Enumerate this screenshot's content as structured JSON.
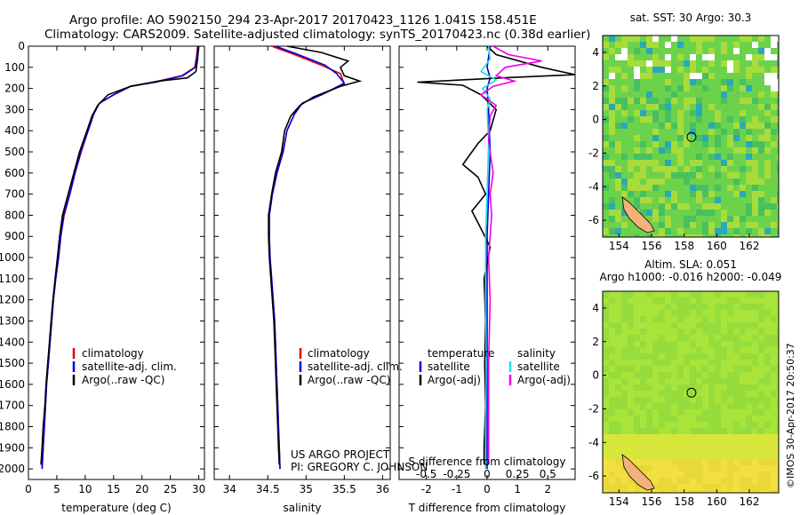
{
  "header": {
    "line1": "Argo profile: AO 5902150_294 23-Apr-2017 20170423_1126 1.041S 158.451E",
    "line2": "Climatology: CARS2009. Satellite-adjusted climatology: synTS_20170423.nc (0.38d earlier)"
  },
  "colors": {
    "climatology": "#dd0000",
    "satellite": "#0000dd",
    "argo": "#000000",
    "sal_satellite": "#22dddd",
    "sal_argo": "#ee00ee"
  },
  "notes": {
    "project": "US ARGO PROJECT",
    "pi": "PI: GREGORY C. JOHNSON"
  },
  "stamp": "©IMOS 30-Apr-2017 20:50:37",
  "chart_data": [
    {
      "id": "temperature",
      "type": "line",
      "xlabel": "temperature (deg C)",
      "ylabel": "",
      "xlim": [
        0,
        31
      ],
      "ylim": [
        0,
        2050
      ],
      "yreversed": true,
      "xticks": [
        0,
        5,
        10,
        15,
        20,
        25,
        30
      ],
      "yticks": [
        0,
        100,
        200,
        300,
        400,
        500,
        600,
        700,
        800,
        900,
        1000,
        1100,
        1200,
        1300,
        1400,
        1500,
        1600,
        1700,
        1800,
        1900,
        2000
      ],
      "legend": [
        "climatology",
        "satellite-adj. clim.",
        "Argo(..raw -QC)"
      ],
      "series": [
        {
          "name": "climatology",
          "color": "#dd0000",
          "points": [
            [
              29.8,
              0
            ],
            [
              29.6,
              50
            ],
            [
              29.3,
              100
            ],
            [
              27,
              140
            ],
            [
              22,
              170
            ],
            [
              18,
              190
            ],
            [
              15,
              230
            ],
            [
              12.5,
              270
            ],
            [
              11.5,
              320
            ],
            [
              10.5,
              400
            ],
            [
              9.3,
              500
            ],
            [
              8.2,
              600
            ],
            [
              7.3,
              700
            ],
            [
              6.3,
              800
            ],
            [
              5.7,
              900
            ],
            [
              5.3,
              1000
            ],
            [
              4.8,
              1100
            ],
            [
              4.4,
              1200
            ],
            [
              4.1,
              1300
            ],
            [
              3.8,
              1400
            ],
            [
              3.5,
              1500
            ],
            [
              3.2,
              1600
            ],
            [
              3.0,
              1700
            ],
            [
              2.8,
              1800
            ],
            [
              2.6,
              1900
            ],
            [
              2.4,
              2000
            ]
          ]
        },
        {
          "name": "satellite-adj. clim.",
          "color": "#0000dd",
          "points": [
            [
              29.9,
              0
            ],
            [
              29.7,
              50
            ],
            [
              29.4,
              100
            ],
            [
              27.2,
              140
            ],
            [
              22.5,
              170
            ],
            [
              18,
              190
            ],
            [
              15,
              230
            ],
            [
              12.5,
              270
            ],
            [
              11.5,
              320
            ],
            [
              10.5,
              400
            ],
            [
              9.2,
              500
            ],
            [
              8.2,
              600
            ],
            [
              7.3,
              700
            ],
            [
              6.2,
              800
            ],
            [
              5.7,
              900
            ],
            [
              5.3,
              1000
            ],
            [
              4.8,
              1100
            ],
            [
              4.4,
              1200
            ],
            [
              4.1,
              1300
            ],
            [
              3.8,
              1400
            ],
            [
              3.5,
              1500
            ],
            [
              3.2,
              1600
            ],
            [
              3.0,
              1700
            ],
            [
              2.8,
              1800
            ],
            [
              2.6,
              1900
            ],
            [
              2.4,
              2000
            ]
          ]
        },
        {
          "name": "Argo(..raw -QC)",
          "color": "#000000",
          "points": [
            [
              30,
              0
            ],
            [
              29.8,
              60
            ],
            [
              29.5,
              120
            ],
            [
              28,
              150
            ],
            [
              23,
              165
            ],
            [
              18,
              190
            ],
            [
              14,
              230
            ],
            [
              12.2,
              280
            ],
            [
              11.2,
              330
            ],
            [
              10.3,
              400
            ],
            [
              9,
              500
            ],
            [
              8,
              600
            ],
            [
              7,
              700
            ],
            [
              6,
              800
            ],
            [
              5.5,
              900
            ],
            [
              5.1,
              1000
            ],
            [
              4.7,
              1100
            ],
            [
              4.3,
              1200
            ],
            [
              4,
              1300
            ],
            [
              3.7,
              1400
            ],
            [
              3.4,
              1500
            ],
            [
              3.1,
              1600
            ],
            [
              2.9,
              1700
            ],
            [
              2.6,
              1800
            ],
            [
              2.4,
              1900
            ],
            [
              2.2,
              1980
            ]
          ]
        }
      ]
    },
    {
      "id": "salinity",
      "type": "line",
      "xlabel": "salinity",
      "ylabel": "",
      "xlim": [
        33.8,
        36.1
      ],
      "ylim": [
        0,
        2050
      ],
      "yreversed": true,
      "xticks": [
        34,
        34.5,
        35,
        35.5,
        36
      ],
      "legend": [
        "climatology",
        "satellite-adj. clim.",
        "Argo(..raw -QC)"
      ],
      "series": [
        {
          "name": "climatology",
          "color": "#dd0000",
          "points": [
            [
              34.55,
              0
            ],
            [
              34.85,
              40
            ],
            [
              35.2,
              90
            ],
            [
              35.45,
              130
            ],
            [
              35.5,
              180
            ],
            [
              35.2,
              230
            ],
            [
              34.95,
              270
            ],
            [
              34.85,
              320
            ],
            [
              34.75,
              400
            ],
            [
              34.7,
              500
            ],
            [
              34.62,
              600
            ],
            [
              34.56,
              700
            ],
            [
              34.52,
              800
            ],
            [
              34.52,
              900
            ],
            [
              34.53,
              1000
            ],
            [
              34.55,
              1100
            ],
            [
              34.57,
              1200
            ],
            [
              34.59,
              1300
            ],
            [
              34.6,
              1400
            ],
            [
              34.61,
              1500
            ],
            [
              34.62,
              1600
            ],
            [
              34.63,
              1700
            ],
            [
              34.64,
              1800
            ],
            [
              34.65,
              1900
            ],
            [
              34.66,
              2000
            ]
          ]
        },
        {
          "name": "satellite-adj. clim.",
          "color": "#0000dd",
          "points": [
            [
              34.6,
              0
            ],
            [
              34.9,
              40
            ],
            [
              35.25,
              90
            ],
            [
              35.4,
              130
            ],
            [
              35.5,
              175
            ],
            [
              35.2,
              230
            ],
            [
              34.95,
              270
            ],
            [
              34.85,
              320
            ],
            [
              34.75,
              400
            ],
            [
              34.7,
              500
            ],
            [
              34.62,
              600
            ],
            [
              34.56,
              700
            ],
            [
              34.52,
              800
            ],
            [
              34.52,
              900
            ],
            [
              34.53,
              1000
            ],
            [
              34.55,
              1100
            ],
            [
              34.57,
              1200
            ],
            [
              34.59,
              1300
            ],
            [
              34.6,
              1400
            ],
            [
              34.61,
              1500
            ],
            [
              34.62,
              1600
            ],
            [
              34.63,
              1700
            ],
            [
              34.64,
              1800
            ],
            [
              34.65,
              1900
            ],
            [
              34.66,
              2000
            ]
          ]
        },
        {
          "name": "Argo(..raw -QC)",
          "color": "#000000",
          "points": [
            [
              34.75,
              0
            ],
            [
              35.2,
              30
            ],
            [
              35.55,
              70
            ],
            [
              35.45,
              100
            ],
            [
              35.5,
              140
            ],
            [
              35.7,
              165
            ],
            [
              35.45,
              190
            ],
            [
              35.1,
              240
            ],
            [
              34.92,
              280
            ],
            [
              34.8,
              330
            ],
            [
              34.72,
              400
            ],
            [
              34.68,
              500
            ],
            [
              34.6,
              600
            ],
            [
              34.55,
              700
            ],
            [
              34.51,
              800
            ],
            [
              34.51,
              900
            ],
            [
              34.52,
              1000
            ],
            [
              34.54,
              1100
            ],
            [
              34.56,
              1200
            ],
            [
              34.58,
              1300
            ],
            [
              34.59,
              1400
            ],
            [
              34.6,
              1500
            ],
            [
              34.61,
              1600
            ],
            [
              34.62,
              1700
            ],
            [
              34.63,
              1800
            ],
            [
              34.64,
              1900
            ],
            [
              34.65,
              1980
            ]
          ]
        }
      ]
    },
    {
      "id": "differences",
      "type": "line",
      "xlabel": "T difference from climatology",
      "xlabel_top": "S difference from climatology",
      "xlim": [
        -2.9,
        2.9
      ],
      "ylim": [
        0,
        2050
      ],
      "yreversed": true,
      "xticks": [
        -2,
        -1,
        0,
        1,
        2
      ],
      "xticks_s": [
        "-0.5",
        "-0.25",
        "0",
        "0.25",
        "0.5"
      ],
      "xticks_s_pos": [
        -2,
        -1,
        0,
        1,
        2
      ],
      "legend_left_title": "temperature",
      "legend_right_title": "salinity",
      "legend_left": [
        "satellite",
        "Argo(-adj)"
      ],
      "legend_right": [
        "satellite",
        "Argo(-adj)"
      ],
      "series": [
        {
          "name": "T satellite",
          "color": "#0000dd",
          "points": [
            [
              0.1,
              0
            ],
            [
              0,
              100
            ],
            [
              0.1,
              150
            ],
            [
              0,
              200
            ],
            [
              0.05,
              300
            ],
            [
              0.1,
              500
            ],
            [
              0.05,
              700
            ],
            [
              0,
              900
            ],
            [
              0,
              1200
            ],
            [
              0,
              1600
            ],
            [
              0,
              2000
            ]
          ]
        },
        {
          "name": "T Argo(-adj)",
          "color": "#000000",
          "points": [
            [
              0,
              0
            ],
            [
              0.3,
              40
            ],
            [
              1.8,
              100
            ],
            [
              2.9,
              135
            ],
            [
              0.5,
              150
            ],
            [
              -2.3,
              170
            ],
            [
              -0.8,
              185
            ],
            [
              -0.2,
              230
            ],
            [
              0.3,
              300
            ],
            [
              0.1,
              400
            ],
            [
              -0.3,
              460
            ],
            [
              -0.8,
              560
            ],
            [
              -0.3,
              620
            ],
            [
              -0.05,
              700
            ],
            [
              -0.5,
              780
            ],
            [
              -0.25,
              850
            ],
            [
              0.1,
              950
            ],
            [
              -0.1,
              1100
            ],
            [
              -0.05,
              1300
            ],
            [
              -0.08,
              1500
            ],
            [
              -0.05,
              1700
            ],
            [
              -0.1,
              1900
            ],
            [
              -0.1,
              1980
            ]
          ]
        },
        {
          "name": "S satellite",
          "color": "#22dddd",
          "points": [
            [
              0.05,
              0
            ],
            [
              0.1,
              60
            ],
            [
              -0.2,
              120
            ],
            [
              0.3,
              160
            ],
            [
              -0.15,
              200
            ],
            [
              0.1,
              250
            ],
            [
              0,
              300
            ],
            [
              0.05,
              450
            ],
            [
              0,
              700
            ],
            [
              -0.05,
              900
            ],
            [
              -0.05,
              1200
            ],
            [
              -0.03,
              1500
            ],
            [
              -0.05,
              1800
            ],
            [
              -0.05,
              2000
            ]
          ]
        },
        {
          "name": "S Argo(-adj)",
          "color": "#ee00ee",
          "points": [
            [
              0.2,
              0
            ],
            [
              0.7,
              40
            ],
            [
              1.8,
              70
            ],
            [
              0.6,
              100
            ],
            [
              0.3,
              140
            ],
            [
              0.9,
              165
            ],
            [
              0.2,
              190
            ],
            [
              -0.2,
              230
            ],
            [
              0.3,
              280
            ],
            [
              0.1,
              330
            ],
            [
              0.05,
              450
            ],
            [
              0.2,
              600
            ],
            [
              0.1,
              700
            ],
            [
              0.15,
              800
            ],
            [
              0.05,
              1000
            ],
            [
              0.1,
              1200
            ],
            [
              0.05,
              1500
            ],
            [
              0.05,
              1800
            ],
            [
              0.05,
              1980
            ]
          ]
        }
      ]
    },
    {
      "id": "sst_map",
      "type": "heatmap",
      "title": "sat. SST: 30 Argo: 30.3",
      "xlim": [
        153,
        163.8
      ],
      "ylim": [
        -7,
        5
      ],
      "xticks": [
        154,
        156,
        158,
        160,
        162
      ],
      "yticks": [
        -6,
        -4,
        -2,
        0,
        2,
        4
      ],
      "float_position": [
        158.451,
        -1.041
      ]
    },
    {
      "id": "sla_map",
      "type": "heatmap",
      "title_line1": "Altim. SLA: 0.051",
      "title_line2": "Argo h1000: -0.016 h2000: -0.049",
      "xlim": [
        153,
        163.8
      ],
      "ylim": [
        -7,
        5
      ],
      "xticks": [
        154,
        156,
        158,
        160,
        162
      ],
      "yticks": [
        -6,
        -4,
        -2,
        0,
        2,
        4
      ],
      "float_position": [
        158.451,
        -1.041
      ]
    }
  ]
}
